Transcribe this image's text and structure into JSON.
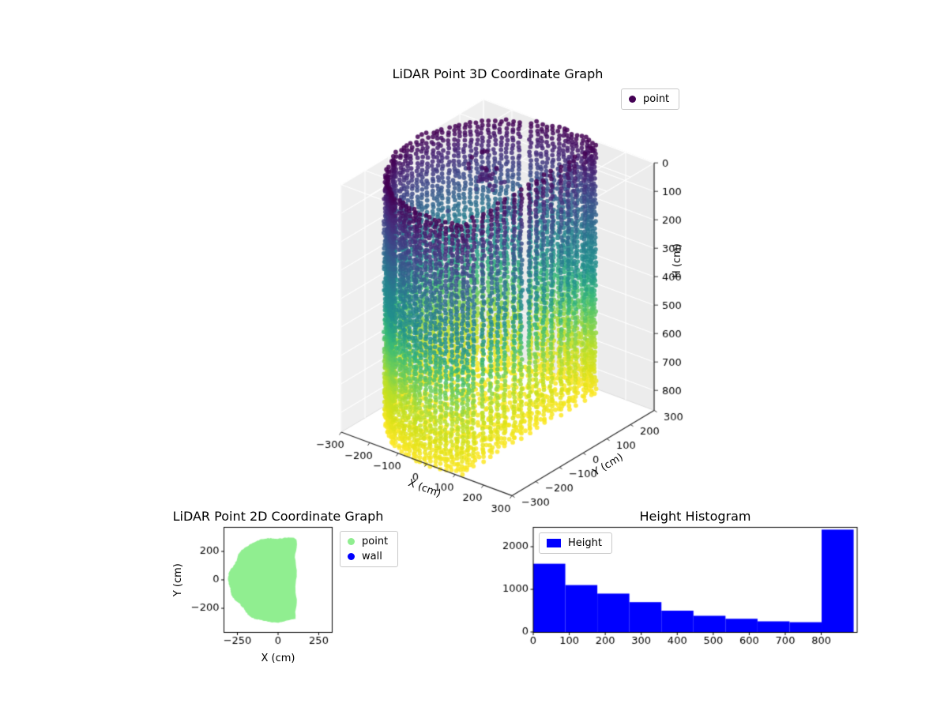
{
  "figure": {
    "bg": "#ffffff"
  },
  "chart_data": [
    {
      "id": "lidar-3d",
      "type": "scatter",
      "projection": "3d",
      "title": "LiDAR Point 3D Coordinate Graph",
      "xlabel": "X (cm)",
      "ylabel": "Y (cm)",
      "zlabel": "H (cm)",
      "xticks": [
        -300,
        -200,
        -100,
        0,
        100,
        200,
        300
      ],
      "yticks": [
        -300,
        -200,
        -100,
        0,
        100,
        200,
        300
      ],
      "zticks": [
        0,
        100,
        200,
        300,
        400,
        500,
        600,
        700,
        800
      ],
      "zaxis_inverted": true,
      "colormap": "viridis",
      "color_by": "height",
      "legend": {
        "position": "upper right",
        "entries": [
          {
            "label": "point",
            "color": "#440154"
          }
        ]
      },
      "point_cloud": {
        "shape": "room scan (cylindrical wall + floor)",
        "radius_cm": 300,
        "flat_wall_x_cm": 110,
        "height_range_cm": [
          0,
          870
        ],
        "wall_columns": 89,
        "column_height_step_cm": 14.5,
        "floor_grid_step_cm": 20,
        "floor_height_cm": 855,
        "pane_color": "#f2f2f2"
      }
    },
    {
      "id": "lidar-2d",
      "type": "scatter",
      "title": "LiDAR Point 2D Coordinate Graph",
      "xlabel": "X (cm)",
      "ylabel": "Y (cm)",
      "xticks": [
        -250,
        0,
        250
      ],
      "yticks": [
        200,
        0,
        -200
      ],
      "legend": {
        "position": "outside upper right",
        "entries": [
          {
            "label": "point",
            "color": "#90ee90"
          },
          {
            "label": "wall",
            "color": "#0000ff"
          }
        ]
      },
      "region": {
        "shape": "filled half-disk",
        "radius_cm": 300,
        "flat_wall_x_cm": 110,
        "fill": "#90ee90"
      }
    },
    {
      "id": "height-histogram",
      "type": "bar",
      "title": "Height Histogram",
      "xticks": [
        0,
        100,
        200,
        300,
        400,
        500,
        600,
        700,
        800
      ],
      "yticks": [
        0,
        1000,
        2000
      ],
      "xlim": [
        0,
        900
      ],
      "ylim": [
        0,
        2450
      ],
      "bar_color": "#0000ff",
      "legend": {
        "position": "upper left",
        "entries": [
          {
            "label": "Height",
            "color": "#0000ff"
          }
        ]
      },
      "bin_edges": [
        0,
        89,
        178,
        267,
        356,
        445,
        534,
        623,
        712,
        801,
        890
      ],
      "counts": [
        1600,
        1100,
        900,
        700,
        500,
        380,
        310,
        250,
        230,
        2400
      ]
    }
  ]
}
